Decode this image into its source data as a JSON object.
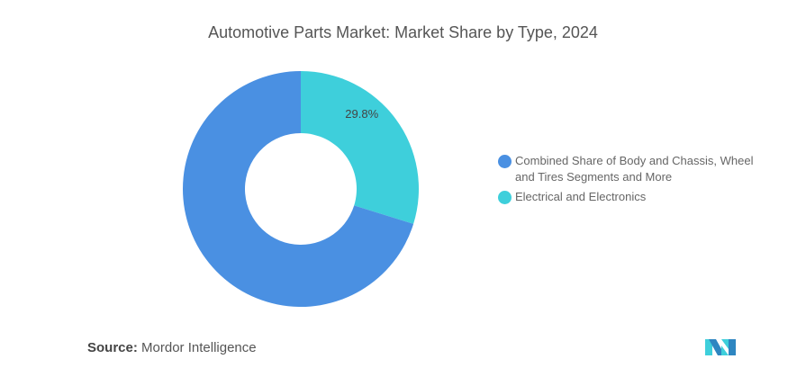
{
  "chart_data": {
    "type": "pie",
    "title": "Automotive Parts Market: Market Share by Type, 2024",
    "categories": [
      "Electrical and Electronics",
      "Combined Share of Body and Chassis, Wheel and Tires Segments and More"
    ],
    "values": [
      29.8,
      70.2
    ],
    "colors": [
      "#3ECFDB",
      "#4A90E2"
    ],
    "data_labels": [
      "29.8%",
      null
    ],
    "donut": true,
    "legend_position": "right"
  },
  "legend": [
    {
      "label": "Combined Share of Body and Chassis, Wheel and Tires Segments and More",
      "color": "#4A90E2"
    },
    {
      "label": "Electrical and Electronics",
      "color": "#3ECFDB"
    }
  ],
  "source": {
    "label": "Source:",
    "value": "Mordor Intelligence"
  }
}
